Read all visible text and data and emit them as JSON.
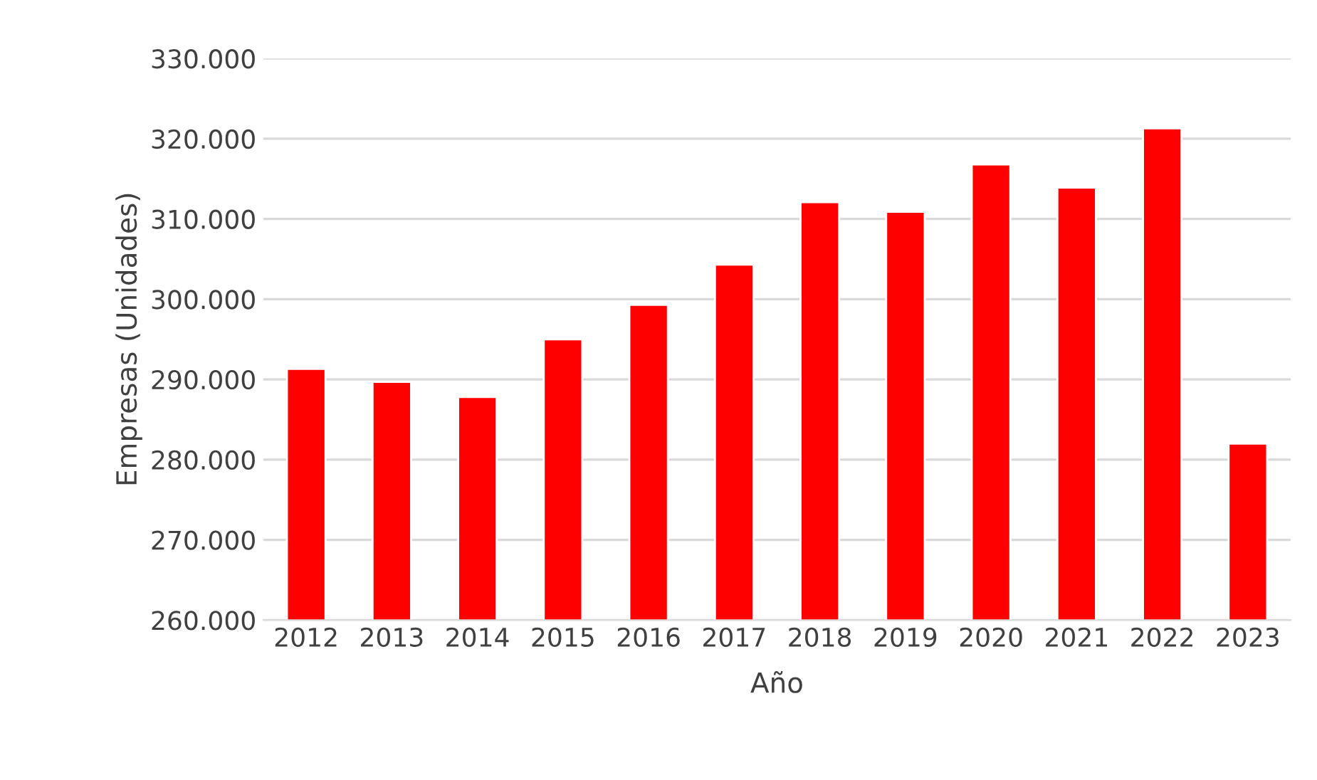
{
  "chart_data": {
    "type": "bar",
    "xlabel": "Año",
    "ylabel": "Empresas (Unidades)",
    "categories": [
      "2012",
      "2013",
      "2014",
      "2015",
      "2016",
      "2017",
      "2018",
      "2019",
      "2020",
      "2021",
      "2022",
      "2023"
    ],
    "values": [
      291300,
      289700,
      287800,
      295000,
      299300,
      304300,
      312100,
      310900,
      316800,
      313900,
      321300,
      282000
    ],
    "color": "#ff0000",
    "ylim": [
      260000,
      330000
    ],
    "yticks": [
      {
        "value": 260000,
        "label": "260.000"
      },
      {
        "value": 270000,
        "label": "270.000"
      },
      {
        "value": 280000,
        "label": "280.000"
      },
      {
        "value": 290000,
        "label": "290.000"
      },
      {
        "value": 300000,
        "label": "300.000"
      },
      {
        "value": 310000,
        "label": "310.000"
      },
      {
        "value": 320000,
        "label": "320.000"
      },
      {
        "value": 330000,
        "label": "330.000"
      }
    ],
    "grid": "y",
    "legend": false
  }
}
